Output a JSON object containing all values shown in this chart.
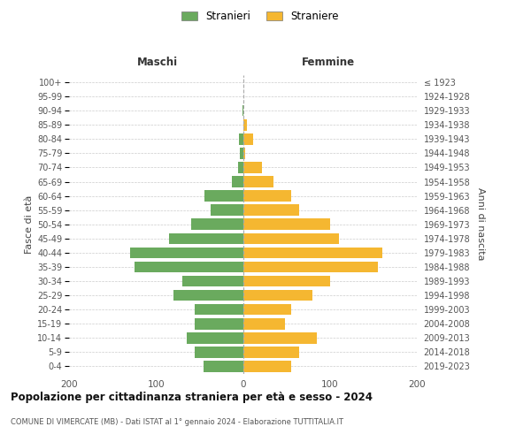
{
  "age_groups": [
    "0-4",
    "5-9",
    "10-14",
    "15-19",
    "20-24",
    "25-29",
    "30-34",
    "35-39",
    "40-44",
    "45-49",
    "50-54",
    "55-59",
    "60-64",
    "65-69",
    "70-74",
    "75-79",
    "80-84",
    "85-89",
    "90-94",
    "95-99",
    "100+"
  ],
  "birth_years": [
    "2019-2023",
    "2014-2018",
    "2009-2013",
    "2004-2008",
    "1999-2003",
    "1994-1998",
    "1989-1993",
    "1984-1988",
    "1979-1983",
    "1974-1978",
    "1969-1973",
    "1964-1968",
    "1959-1963",
    "1954-1958",
    "1949-1953",
    "1944-1948",
    "1939-1943",
    "1934-1938",
    "1929-1933",
    "1924-1928",
    "≤ 1923"
  ],
  "maschi": [
    45,
    55,
    65,
    55,
    55,
    80,
    70,
    125,
    130,
    85,
    60,
    37,
    44,
    13,
    6,
    4,
    5,
    0,
    1,
    0,
    0
  ],
  "femmine": [
    55,
    65,
    85,
    48,
    55,
    80,
    100,
    155,
    160,
    110,
    100,
    65,
    55,
    35,
    22,
    3,
    12,
    5,
    1,
    0,
    0
  ],
  "maschi_color": "#6aaa5e",
  "femmine_color": "#f5b731",
  "background_color": "#ffffff",
  "grid_color": "#cccccc",
  "title": "Popolazione per cittadinanza straniera per età e sesso - 2024",
  "subtitle": "COMUNE DI VIMERCATE (MB) - Dati ISTAT al 1° gennaio 2024 - Elaborazione TUTTITALIA.IT",
  "xlabel_left": "Maschi",
  "xlabel_right": "Femmine",
  "ylabel_left": "Fasce di età",
  "ylabel_right": "Anni di nascita",
  "legend_stranieri": "Stranieri",
  "legend_straniere": "Straniere",
  "xlim": 200
}
